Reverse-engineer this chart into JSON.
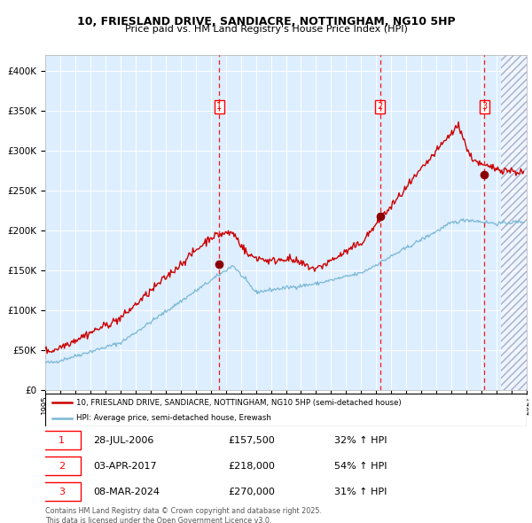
{
  "title": "10, FRIESLAND DRIVE, SANDIACRE, NOTTINGHAM, NG10 5HP",
  "subtitle": "Price paid vs. HM Land Registry's House Price Index (HPI)",
  "legend_line1": "10, FRIESLAND DRIVE, SANDIACRE, NOTTINGHAM, NG10 5HP (semi-detached house)",
  "legend_line2": "HPI: Average price, semi-detached house, Erewash",
  "footer": "Contains HM Land Registry data © Crown copyright and database right 2025.\nThis data is licensed under the Open Government Licence v3.0.",
  "sales": [
    {
      "num": 1,
      "date": "28-JUL-2006",
      "price": 157500,
      "hpi": "32% ↑ HPI",
      "x_year": 2006.57
    },
    {
      "num": 2,
      "date": "03-APR-2017",
      "price": 218000,
      "hpi": "54% ↑ HPI",
      "x_year": 2017.25
    },
    {
      "num": 3,
      "date": "08-MAR-2024",
      "price": 270000,
      "hpi": "31% ↑ HPI",
      "x_year": 2024.18
    }
  ],
  "hpi_color": "#7ab8d4",
  "price_color": "#cc0000",
  "dot_color": "#8b0000",
  "background_color": "#ddeeff",
  "ylim": [
    0,
    420000
  ],
  "xlim_start": 1995.0,
  "xlim_end": 2027.0,
  "hatch_start": 2025.3
}
